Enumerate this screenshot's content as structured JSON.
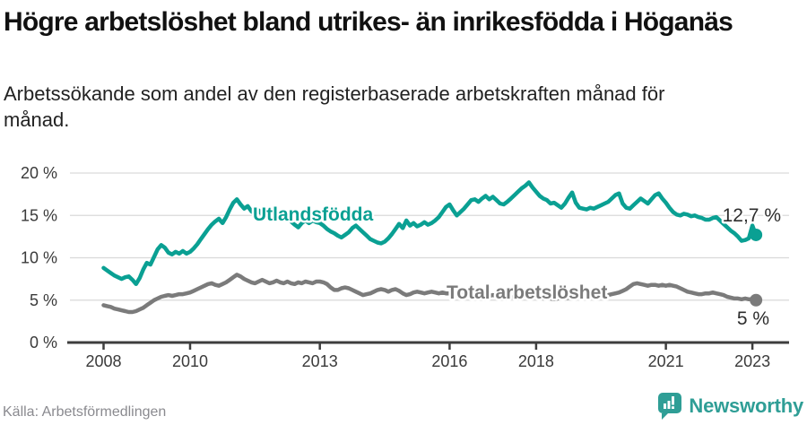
{
  "header": {
    "title": "Högre arbetslöshet bland utrikes- än inrikesfödda i Höganäs",
    "subtitle": "Arbetssökande som andel av den registerbaserade arbetskraften månad för månad."
  },
  "chart_data": {
    "type": "line",
    "x_unit": "month",
    "x_start": "2008-01",
    "x_end": "2023-02",
    "xticks": [
      2008,
      2010,
      2013,
      2016,
      2018,
      2021,
      2023
    ],
    "ytick_labels": [
      "0 %",
      "5 %",
      "10 %",
      "15 %",
      "20 %"
    ],
    "ytick_values": [
      0,
      5,
      10,
      15,
      20
    ],
    "ylim": [
      0,
      21
    ],
    "grid": "horizontal",
    "colors": {
      "accent_teal": "#0aa093",
      "line_gray": "#7b7b7b",
      "gridline": "#d9d9d9",
      "axis": "#3e3e3e",
      "tick_text": "#3a3a3a",
      "value_text": "#2d2d2d"
    },
    "series": [
      {
        "name": "Utlandsfödda",
        "color": "#0aa093",
        "end_label": "12,7 %",
        "values": [
          8.8,
          8.5,
          8.2,
          7.9,
          7.7,
          7.5,
          7.7,
          7.8,
          7.4,
          6.9,
          7.6,
          8.6,
          9.4,
          9.2,
          10.1,
          11.0,
          11.5,
          11.2,
          10.6,
          10.4,
          10.7,
          10.5,
          10.8,
          10.5,
          10.7,
          11.1,
          11.6,
          12.2,
          12.8,
          13.4,
          13.9,
          14.3,
          14.6,
          14.1,
          14.8,
          15.7,
          16.5,
          16.9,
          16.3,
          15.8,
          16.1,
          15.5,
          15.2,
          15.6,
          15.1,
          14.8,
          15.2,
          14.9,
          15.1,
          14.8,
          14.6,
          14.8,
          14.3,
          13.9,
          13.6,
          14.1,
          14.4,
          14.1,
          14.4,
          14.2,
          14.1,
          13.8,
          13.4,
          13.1,
          12.9,
          12.6,
          12.4,
          12.7,
          13.0,
          13.5,
          13.8,
          13.4,
          13.0,
          12.6,
          12.2,
          12.0,
          11.8,
          11.7,
          11.9,
          12.3,
          12.8,
          13.4,
          14.0,
          13.5,
          14.4,
          13.8,
          14.1,
          13.7,
          13.9,
          14.2,
          13.9,
          14.1,
          14.4,
          14.8,
          15.4,
          16.0,
          16.3,
          15.6,
          15.0,
          15.4,
          15.8,
          16.3,
          16.8,
          16.9,
          16.6,
          17.0,
          17.3,
          16.9,
          17.2,
          16.8,
          16.4,
          16.3,
          16.6,
          17.0,
          17.4,
          17.8,
          18.2,
          18.5,
          18.9,
          18.3,
          17.8,
          17.3,
          17.0,
          16.8,
          16.4,
          16.5,
          16.2,
          15.9,
          16.4,
          17.1,
          17.7,
          16.5,
          15.9,
          15.8,
          15.7,
          15.9,
          15.8,
          16.0,
          16.2,
          16.4,
          16.6,
          17.0,
          17.4,
          17.6,
          16.4,
          15.9,
          15.8,
          16.2,
          16.6,
          17.0,
          16.7,
          16.4,
          16.9,
          17.4,
          17.6,
          17.0,
          16.5,
          15.9,
          15.4,
          15.1,
          15.0,
          15.2,
          15.1,
          14.9,
          15.0,
          14.8,
          14.7,
          14.5,
          14.5,
          14.7,
          14.8,
          14.4,
          14.0,
          13.6,
          13.2,
          12.9,
          12.5,
          12.0,
          12.1,
          12.3,
          13.8,
          12.7
        ]
      },
      {
        "name": "Total arbetslöshet",
        "color": "#7b7b7b",
        "end_label": "5 %",
        "values": [
          4.4,
          4.3,
          4.2,
          4.0,
          3.9,
          3.8,
          3.7,
          3.6,
          3.6,
          3.7,
          3.9,
          4.1,
          4.4,
          4.7,
          5.0,
          5.2,
          5.4,
          5.5,
          5.6,
          5.5,
          5.6,
          5.7,
          5.7,
          5.8,
          5.9,
          6.1,
          6.3,
          6.5,
          6.7,
          6.9,
          7.0,
          6.8,
          6.7,
          6.9,
          7.1,
          7.4,
          7.7,
          8.0,
          7.8,
          7.5,
          7.3,
          7.1,
          7.0,
          7.2,
          7.4,
          7.2,
          7.0,
          7.1,
          7.3,
          7.1,
          7.0,
          7.2,
          7.0,
          6.9,
          7.1,
          7.0,
          7.2,
          7.1,
          7.0,
          7.2,
          7.2,
          7.1,
          6.9,
          6.5,
          6.2,
          6.2,
          6.4,
          6.5,
          6.4,
          6.2,
          6.0,
          5.8,
          5.6,
          5.7,
          5.8,
          6.0,
          6.2,
          6.3,
          6.2,
          6.0,
          6.2,
          6.3,
          6.1,
          5.8,
          5.6,
          5.7,
          5.9,
          6.0,
          5.9,
          5.8,
          5.9,
          6.0,
          5.9,
          5.8,
          5.9,
          5.8,
          5.8,
          5.7,
          5.6,
          5.7,
          5.6,
          5.5,
          5.6,
          5.7,
          5.6,
          5.5,
          5.6,
          5.5,
          5.6,
          5.5,
          5.4,
          5.5,
          5.4,
          5.3,
          5.4,
          5.5,
          5.4,
          5.5,
          5.4,
          5.5,
          5.4,
          5.3,
          5.2,
          5.3,
          5.2,
          5.1,
          5.2,
          5.3,
          5.2,
          5.3,
          5.4,
          5.3,
          5.4,
          5.3,
          5.4,
          5.3,
          5.4,
          5.5,
          5.6,
          5.5,
          5.6,
          5.7,
          5.8,
          5.9,
          6.1,
          6.3,
          6.6,
          6.9,
          7.0,
          6.9,
          6.8,
          6.7,
          6.8,
          6.8,
          6.7,
          6.8,
          6.7,
          6.8,
          6.7,
          6.6,
          6.4,
          6.2,
          6.0,
          5.9,
          5.8,
          5.7,
          5.7,
          5.8,
          5.8,
          5.9,
          5.8,
          5.7,
          5.6,
          5.4,
          5.3,
          5.2,
          5.2,
          5.1,
          5.2,
          5.1,
          5.1,
          5.0
        ]
      }
    ]
  },
  "footer": {
    "source": "Källa: Arbetsförmedlingen",
    "brand": "Newsworthy"
  }
}
